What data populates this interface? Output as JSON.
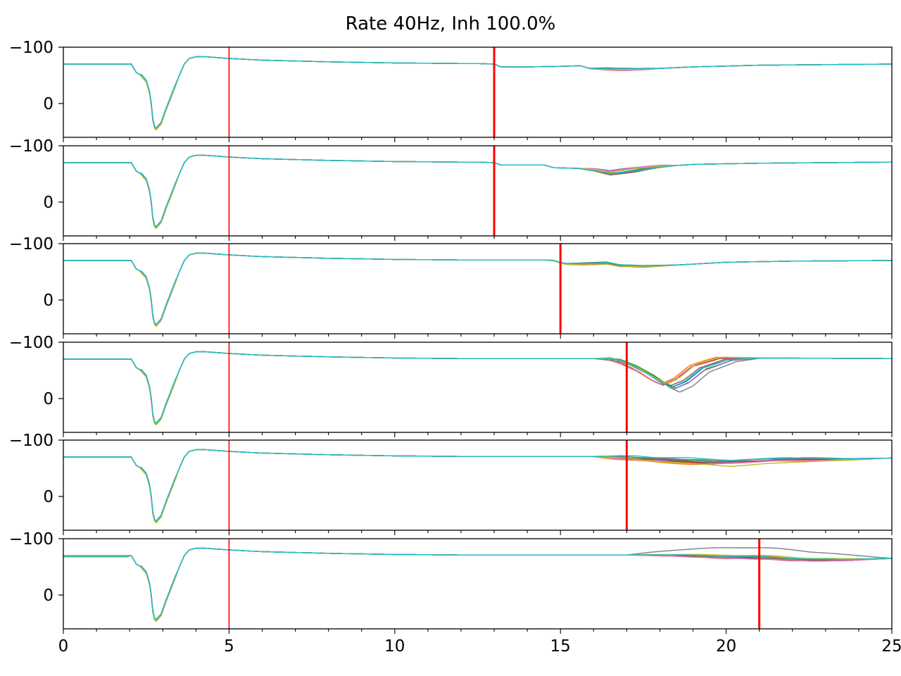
{
  "chart_data": {
    "type": "line",
    "title": "Rate 40Hz, Inh 100.0%",
    "xlabel": "",
    "ylabel": "",
    "xlim": [
      0,
      25
    ],
    "ylim": [
      60,
      -100
    ],
    "x_ticks": [
      0,
      5,
      10,
      15,
      20,
      25
    ],
    "x_tick_labels": [
      "0",
      "5",
      "10",
      "15",
      "20",
      "25"
    ],
    "y_ticks": [
      -100,
      0
    ],
    "y_tick_labels": [
      "−100",
      "0"
    ],
    "grid": false,
    "legend": "none",
    "series_colors": [
      "#1f77b4",
      "#ff7f0e",
      "#2ca02c",
      "#d62728",
      "#9467bd",
      "#8c564b",
      "#e377c2",
      "#7f7f7f",
      "#bcbd22",
      "#17becf"
    ],
    "vline_color": "#ff0000",
    "common_trace": {
      "x": [
        0,
        2.05,
        2.2,
        2.35,
        2.5,
        2.6,
        2.65,
        2.72,
        2.8,
        2.95,
        3.1,
        3.3,
        3.5,
        3.65,
        3.8,
        4.0,
        4.3,
        5.0,
        6.0,
        8.0,
        10.0,
        12.0
      ],
      "y": [
        -70,
        -70,
        -55,
        -50,
        -40,
        -20,
        0,
        40,
        45,
        35,
        10,
        -20,
        -50,
        -70,
        -80,
        -83,
        -83,
        -80,
        -77,
        -74,
        -72,
        -71
      ]
    },
    "panels": [
      {
        "panel": 1,
        "stim_lines": [
          5,
          13
        ],
        "tail_x": [
          12.5,
          13.0,
          13.2,
          14.0,
          15.0,
          15.6,
          15.9,
          16.6,
          17.5,
          19.0,
          21.0,
          25.0
        ],
        "tail_y": [
          -71,
          -70,
          -65,
          -65,
          -66,
          -67,
          -62,
          -61,
          -61,
          -65,
          -68,
          -70
        ],
        "dip_start": 15.8,
        "dip_end": 18.0,
        "spread": [
          -1,
          2,
          -1,
          1,
          0,
          -2,
          2,
          0,
          1,
          -1
        ]
      },
      {
        "panel": 2,
        "stim_lines": [
          5,
          13
        ],
        "tail_x": [
          12.5,
          13.0,
          13.2,
          14.0,
          14.5,
          14.8,
          15.5,
          16.0,
          16.5,
          17.0,
          18.0,
          19.0,
          21.0,
          25.0
        ],
        "tail_y": [
          -71,
          -70,
          -66,
          -66,
          -66,
          -61,
          -60,
          -57,
          -51,
          -55,
          -63,
          -67,
          -69,
          -71
        ],
        "dip_start": 15.5,
        "dip_end": 18.5,
        "spread": [
          0,
          3,
          -2,
          2,
          -5,
          3,
          -4,
          1,
          -2,
          2
        ]
      },
      {
        "panel": 3,
        "stim_lines": [
          5,
          15
        ],
        "tail_x": [
          14.5,
          14.8,
          15.0,
          15.2,
          16.0,
          16.4,
          16.8,
          17.5,
          18.5,
          20.0,
          22.0,
          25.0
        ],
        "tail_y": [
          -71,
          -70,
          -66,
          -64,
          -65,
          -66,
          -61,
          -60,
          -62,
          -67,
          -69,
          -70
        ],
        "dip_start": 14.5,
        "dip_end": 18.5,
        "spread": [
          -1,
          1,
          -1,
          2,
          0,
          -1,
          1,
          0,
          2,
          -1
        ]
      },
      {
        "panel": 4,
        "stim_lines": [
          5,
          17
        ],
        "tail_x": [
          16.0,
          16.6,
          17.1,
          17.6,
          18.0,
          18.3,
          18.7,
          19.2,
          20.0,
          21.0,
          25.0
        ],
        "tail_y": [
          -71,
          -71,
          -60,
          -45,
          -30,
          -22,
          -32,
          -55,
          -70,
          -72,
          -71
        ],
        "dip_start": 16.0,
        "dip_end": 21.0,
        "spread": [
          1,
          -4,
          3,
          -2,
          5,
          0,
          -3,
          10,
          -6,
          2
        ],
        "shift": [
          0.1,
          -0.3,
          0.2,
          -0.2,
          0.15,
          0.0,
          -0.25,
          0.3,
          -0.1,
          0.05
        ]
      },
      {
        "panel": 5,
        "stim_lines": [
          5,
          17
        ],
        "tail_x": [
          16.0,
          16.5,
          17.0,
          18.0,
          18.5,
          19.5,
          20.5,
          21.5,
          23.0,
          24.0,
          25.0
        ],
        "tail_y": [
          -71,
          -70,
          -67,
          -65,
          -63,
          -60,
          -63,
          -66,
          -66,
          -67,
          -68
        ],
        "dip_start": 16.0,
        "dip_end": 24.5,
        "spread": [
          1,
          4,
          -2,
          2,
          -1,
          0,
          3,
          -3,
          6,
          -4
        ],
        "shift": [
          0.2,
          -0.4,
          0.1,
          0.0,
          -0.2,
          0.3,
          -0.1,
          0.4,
          0.6,
          0.8
        ]
      },
      {
        "panel": 6,
        "stim_lines": [
          5,
          21
        ],
        "tail_x": [
          17.0,
          17.5,
          18.5,
          19.5,
          21.0,
          21.5,
          22.5,
          23.5,
          24.5,
          25.0
        ],
        "tail_y": [
          -71,
          -71,
          -70,
          -68,
          -66,
          -65,
          -62,
          -62,
          -64,
          -65
        ],
        "dip_start": 17.0,
        "dip_end": 25.0,
        "spread": [
          1,
          -3,
          -1,
          2,
          1,
          0,
          2,
          -18,
          -4,
          -2
        ]
      }
    ]
  }
}
